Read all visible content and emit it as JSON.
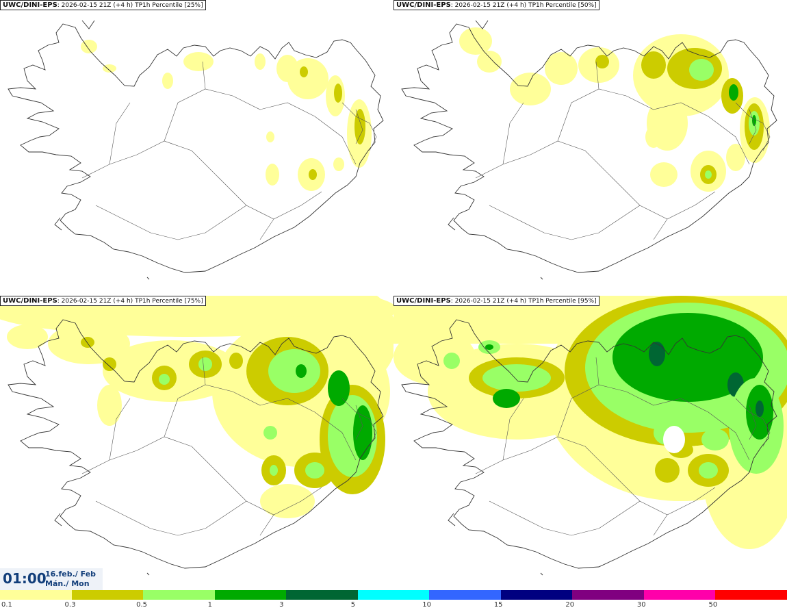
{
  "panels": [
    {
      "model": "UWC/DINI-EPS",
      "run": "2026-02-15 21Z",
      "lead": "(+4 h)",
      "field": "TP1h Percentile",
      "percentile": "[25%]"
    },
    {
      "model": "UWC/DINI-EPS",
      "run": "2026-02-15 21Z",
      "lead": "(+4 h)",
      "field": "TP1h Percentile",
      "percentile": "[50%]"
    },
    {
      "model": "UWC/DINI-EPS",
      "run": "2026-02-15 21Z",
      "lead": "(+4 h)",
      "field": "TP1h Percentile",
      "percentile": "[75%]"
    },
    {
      "model": "UWC/DINI-EPS",
      "run": "2026-02-15 21Z",
      "lead": "(+4 h)",
      "field": "TP1h Percentile",
      "percentile": "[95%]"
    }
  ],
  "valid_time": {
    "time": "01:00",
    "date_line1": "16.feb./ Feb",
    "date_line2": "Mán./ Mon"
  },
  "legend": {
    "colors": [
      "#ffff99",
      "#cccc00",
      "#99ff66",
      "#00aa00",
      "#006633",
      "#00ffff",
      "#3366ff",
      "#000080",
      "#800080",
      "#ff00aa",
      "#ff0000"
    ],
    "labels": [
      "0.1",
      "0.3",
      "0.5",
      "1",
      "3",
      "5",
      "10",
      "15",
      "20",
      "30",
      "50"
    ]
  },
  "colors": {
    "coast": "#333333",
    "title_text": "#123e7a"
  }
}
